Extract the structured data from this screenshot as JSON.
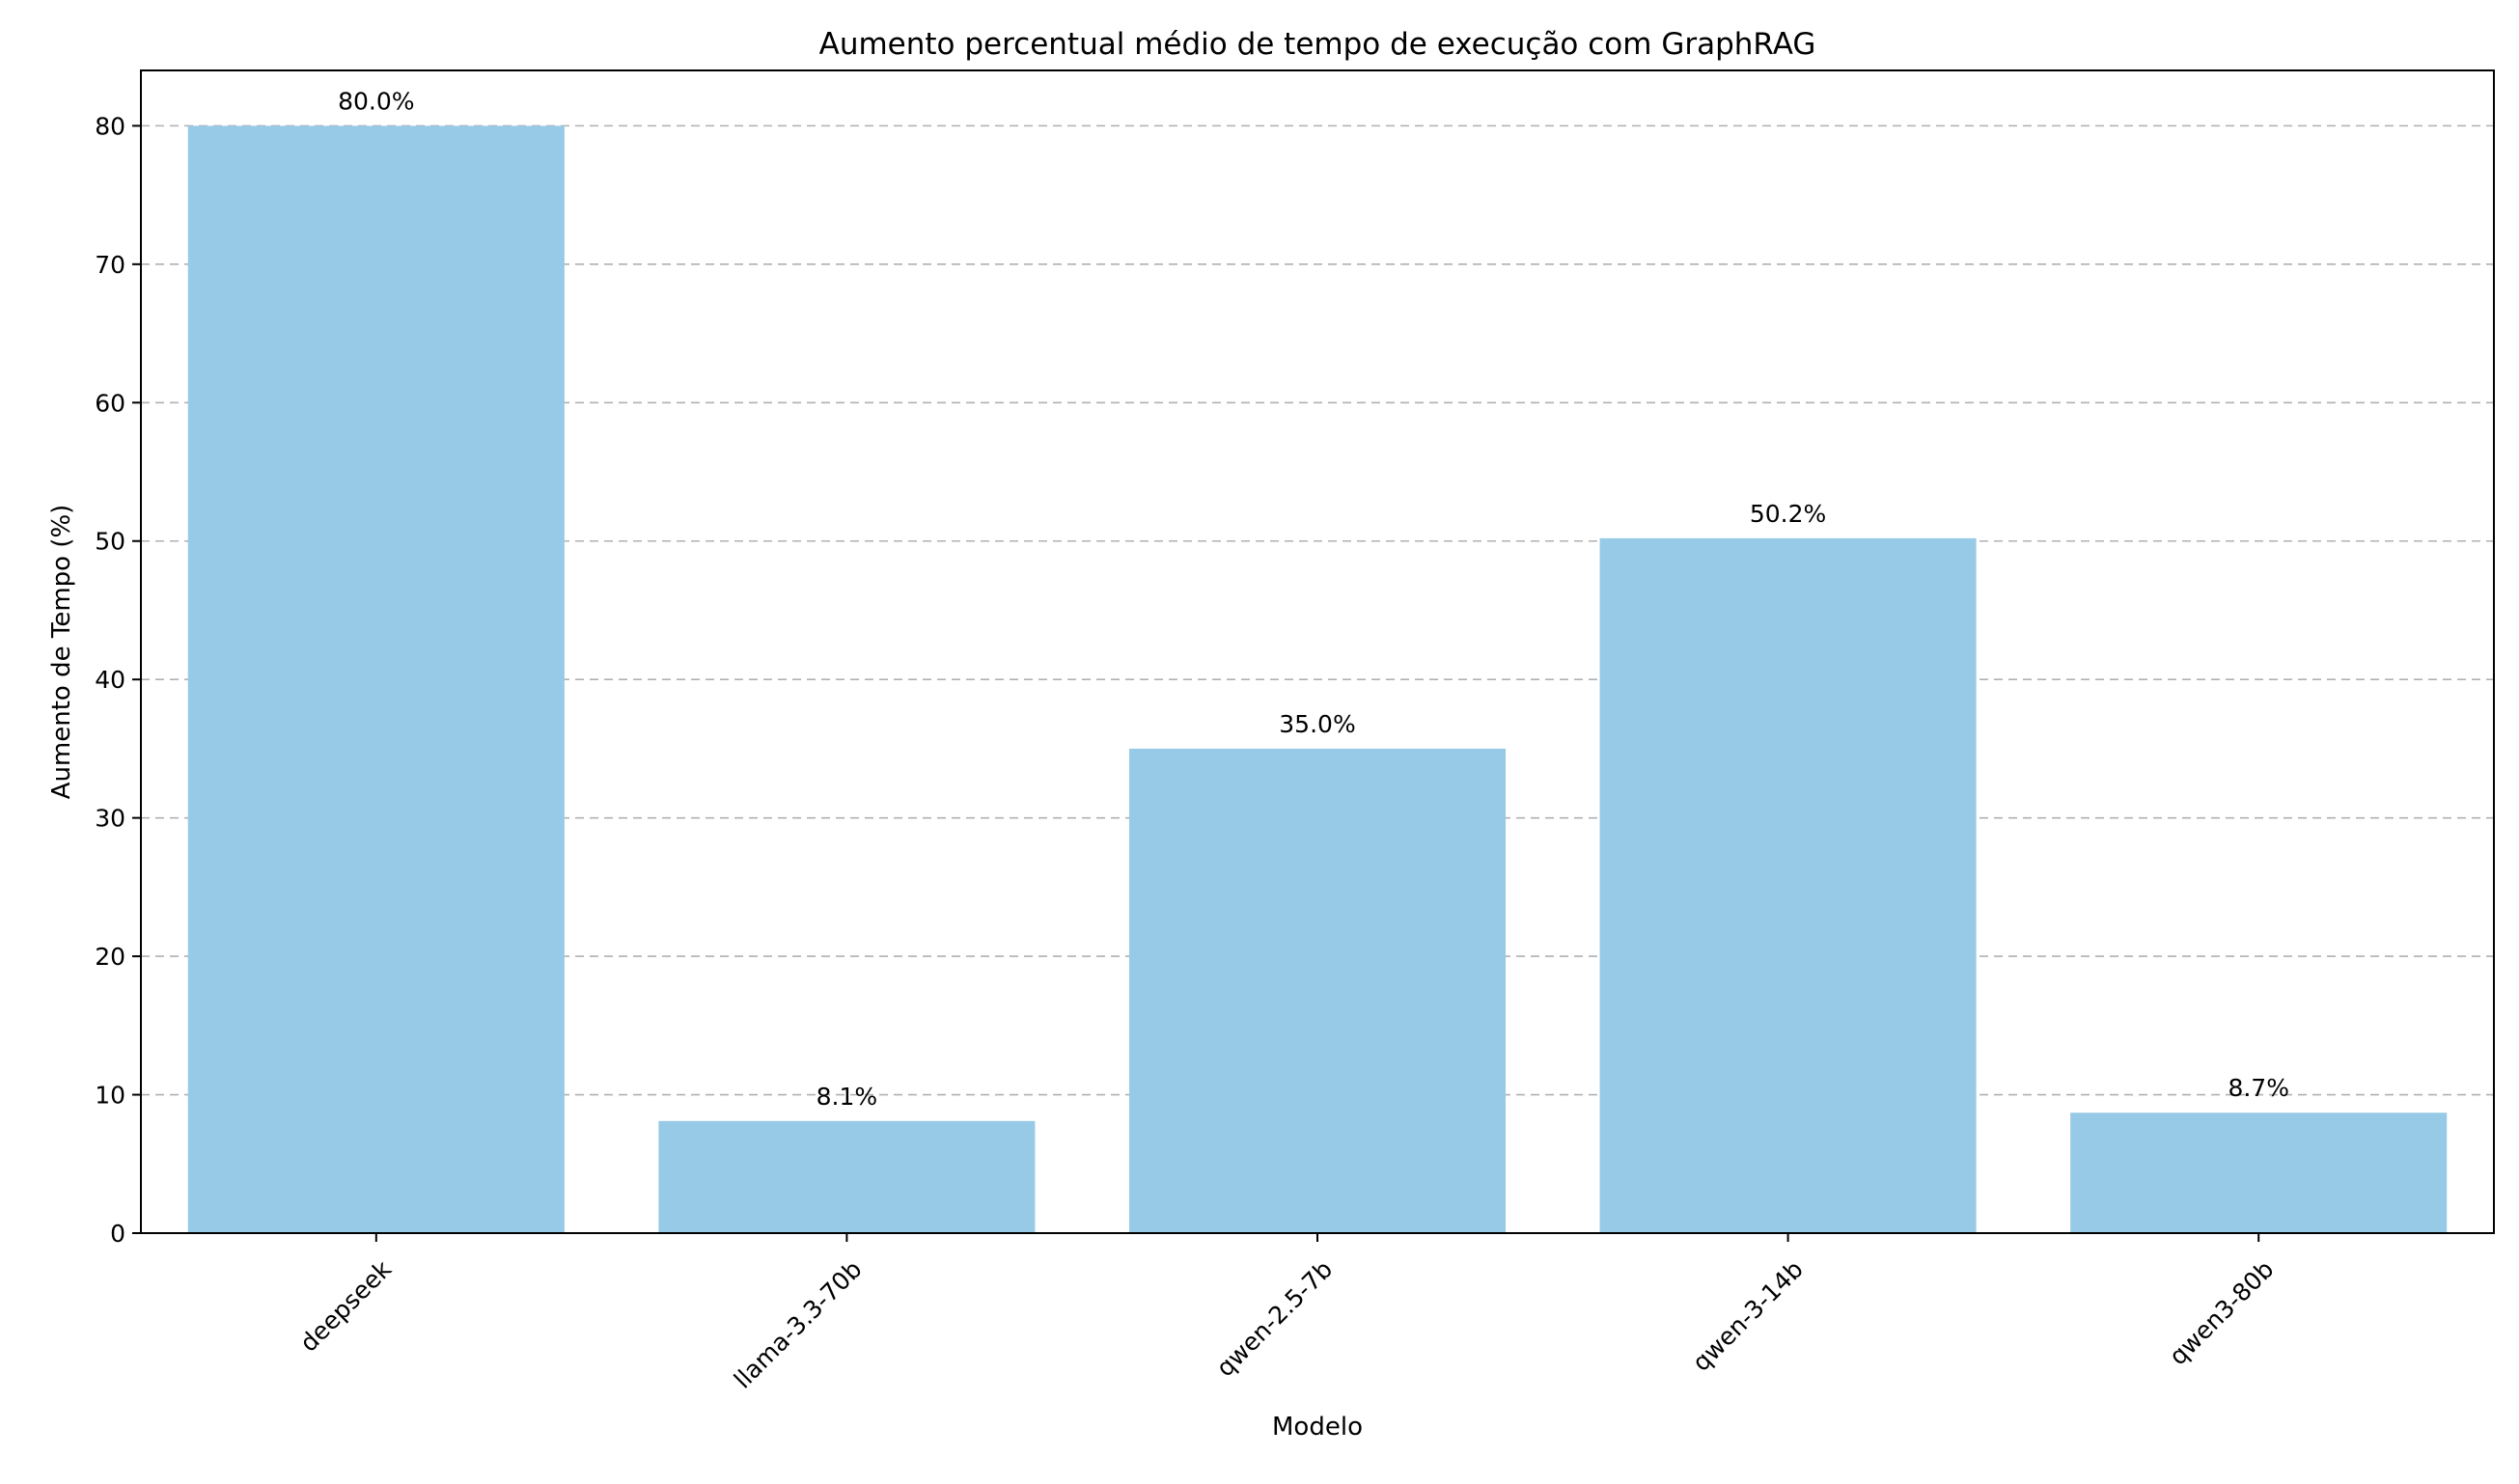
{
  "chart_data": {
    "type": "bar",
    "title": "Aumento percentual médio de tempo de execução com GraphRAG",
    "xlabel": "Modelo",
    "ylabel": "Aumento de Tempo (%)",
    "categories": [
      "deepseek",
      "llama-3.3-70b",
      "qwen-2.5-7b",
      "qwen-3-14b",
      "qwen3-80b"
    ],
    "values": [
      80.0,
      8.1,
      35.0,
      50.2,
      8.7
    ],
    "data_labels": [
      "80.0%",
      "8.1%",
      "35.0%",
      "50.2%",
      "8.7%"
    ],
    "yticks": [
      0,
      10,
      20,
      30,
      40,
      50,
      60,
      70,
      80
    ],
    "ylim": [
      0,
      84
    ],
    "grid": "horizontal dashed",
    "legend": "none",
    "bar_color": "#97cae6",
    "grid_color": "#b0b0b0"
  }
}
